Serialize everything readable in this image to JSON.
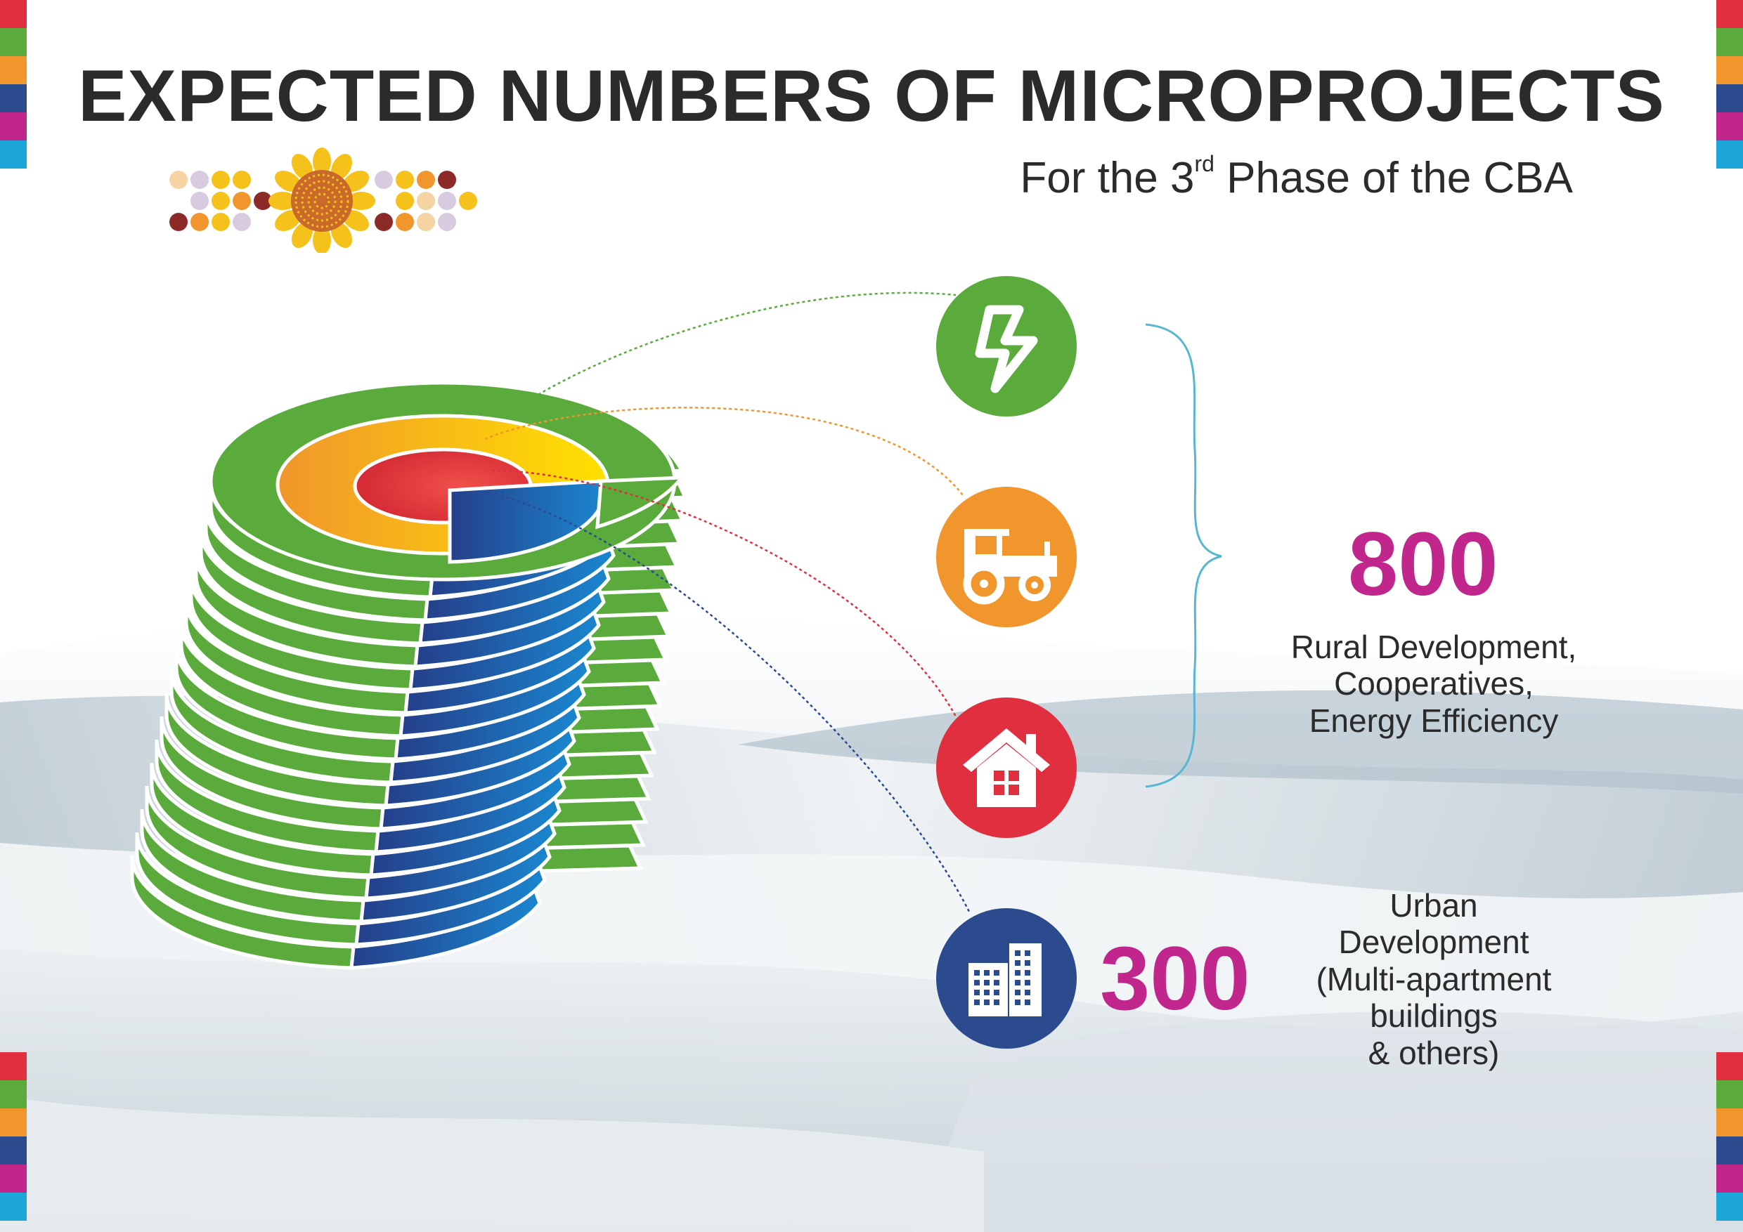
{
  "title": "EXPECTED NUMBERS OF MICROPROJECTS",
  "subtitle": {
    "prefix": "For the 3",
    "ordinal": "rd",
    "suffix": " Phase of the CBA"
  },
  "groups": [
    {
      "value": "800",
      "caption_lines": [
        "Rural Development,",
        "Cooperatives,",
        "Energy Efficiency"
      ],
      "icons": [
        "lightning-icon",
        "tractor-icon",
        "house-icon"
      ]
    },
    {
      "value": "300",
      "caption_lines": [
        "Urban",
        "Development",
        "(Multi-apartment",
        "buildings",
        "& others)"
      ],
      "icons": [
        "buildings-icon"
      ]
    }
  ],
  "colors": {
    "title": "#2b2b2b",
    "number": "#c0268b",
    "green": "#5aaa3c",
    "orange": "#f0962c",
    "red": "#e03040",
    "navy": "#2c4a8e",
    "magenta": "#c0268b",
    "cyan": "#1ca7d8"
  },
  "strip_colors": [
    "#e03040",
    "#5aaa3c",
    "#f0962c",
    "#2c4a8e",
    "#c0268b",
    "#1ca7d8"
  ]
}
